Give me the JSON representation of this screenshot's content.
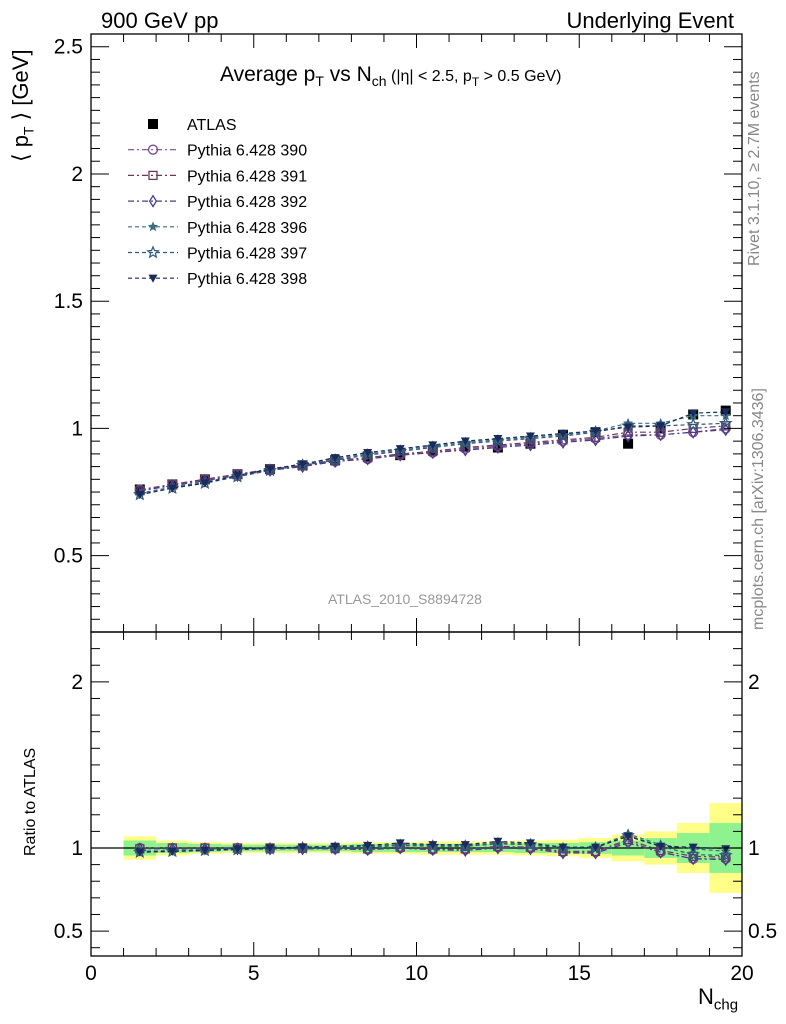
{
  "header": {
    "left": "900 GeV pp",
    "right": "Underlying Event"
  },
  "side_labels": {
    "rivet": "Rivet 3.1.10, ≥ 2.7M events",
    "mcplots": "mcplots.cern.ch [arXiv:1306.3436]"
  },
  "watermark": "ATLAS_2010_S8894728",
  "title": {
    "main": "Average p",
    "main_sub": "T",
    "vs": " vs N",
    "vs_sub": "ch",
    "cut1": " (|η| < 2.5, p",
    "cut_sub": "T",
    "cut2": " > 0.5 GeV)"
  },
  "axes": {
    "y_main_label": "⟨ p",
    "y_main_sub": "T",
    "y_main_unit": " ⟩ [GeV]",
    "y_ratio_label": "Ratio to ATLAS",
    "x_label": "N",
    "x_sub": "chg",
    "x_ticks": [
      "0",
      "5",
      "10",
      "15",
      "20"
    ],
    "y_main_ticks": [
      "0.5",
      "1",
      "1.5",
      "2",
      "2.5"
    ],
    "y_ratio_ticks": [
      "0.5",
      "1",
      "2"
    ]
  },
  "chart_data": {
    "type": "scatter",
    "x_range": [
      0,
      20
    ],
    "main": {
      "ylim": [
        0.2,
        2.55
      ],
      "series": [
        {
          "name": "ATLAS",
          "marker": "filled-square",
          "color": "#000000",
          "x": [
            1.5,
            2.5,
            3.5,
            4.5,
            5.5,
            6.5,
            7.5,
            8.5,
            9.5,
            10.5,
            11.5,
            12.5,
            13.5,
            14.5,
            15.5,
            16.5,
            17.5,
            18.5,
            19.5
          ],
          "y": [
            0.76,
            0.78,
            0.8,
            0.82,
            0.84,
            0.855,
            0.875,
            0.89,
            0.895,
            0.915,
            0.93,
            0.925,
            0.94,
            0.975,
            0.985,
            0.94,
            1.0,
            1.055,
            1.07
          ]
        },
        {
          "name": "Pythia 6.428 390",
          "marker": "open-circle",
          "color": "#7b4a8c",
          "x": [
            1.5,
            2.5,
            3.5,
            4.5,
            5.5,
            6.5,
            7.5,
            8.5,
            9.5,
            10.5,
            11.5,
            12.5,
            13.5,
            14.5,
            15.5,
            16.5,
            17.5,
            18.5,
            19.5
          ],
          "y": [
            0.76,
            0.78,
            0.8,
            0.82,
            0.835,
            0.855,
            0.87,
            0.88,
            0.895,
            0.905,
            0.92,
            0.93,
            0.94,
            0.95,
            0.96,
            0.975,
            0.975,
            0.985,
            1.0
          ]
        },
        {
          "name": "Pythia 6.428 391",
          "marker": "open-square",
          "color": "#6b3a5a",
          "x": [
            1.5,
            2.5,
            3.5,
            4.5,
            5.5,
            6.5,
            7.5,
            8.5,
            9.5,
            10.5,
            11.5,
            12.5,
            13.5,
            14.5,
            15.5,
            16.5,
            17.5,
            18.5,
            19.5
          ],
          "y": [
            0.755,
            0.78,
            0.8,
            0.82,
            0.84,
            0.855,
            0.875,
            0.885,
            0.9,
            0.91,
            0.925,
            0.935,
            0.945,
            0.955,
            0.965,
            0.985,
            0.985,
            1.0,
            1.01
          ]
        },
        {
          "name": "Pythia 6.428 392",
          "marker": "open-diamond",
          "color": "#4a3a8c",
          "x": [
            1.5,
            2.5,
            3.5,
            4.5,
            5.5,
            6.5,
            7.5,
            8.5,
            9.5,
            10.5,
            11.5,
            12.5,
            13.5,
            14.5,
            15.5,
            16.5,
            17.5,
            18.5,
            19.5
          ],
          "y": [
            0.755,
            0.775,
            0.795,
            0.815,
            0.835,
            0.85,
            0.87,
            0.88,
            0.895,
            0.905,
            0.915,
            0.925,
            0.935,
            0.945,
            0.955,
            0.97,
            0.975,
            0.985,
            0.995
          ]
        },
        {
          "name": "Pythia 6.428 396",
          "marker": "filled-star",
          "color": "#3e6e84",
          "x": [
            1.5,
            2.5,
            3.5,
            4.5,
            5.5,
            6.5,
            7.5,
            8.5,
            9.5,
            10.5,
            11.5,
            12.5,
            13.5,
            14.5,
            15.5,
            16.5,
            17.5,
            18.5,
            19.5
          ],
          "y": [
            0.745,
            0.77,
            0.79,
            0.815,
            0.84,
            0.86,
            0.88,
            0.9,
            0.915,
            0.93,
            0.945,
            0.955,
            0.965,
            0.975,
            0.99,
            1.02,
            1.02,
            1.05,
            1.05
          ]
        },
        {
          "name": "Pythia 6.428 397",
          "marker": "open-star",
          "color": "#2e5a7a",
          "x": [
            1.5,
            2.5,
            3.5,
            4.5,
            5.5,
            6.5,
            7.5,
            8.5,
            9.5,
            10.5,
            11.5,
            12.5,
            13.5,
            14.5,
            15.5,
            16.5,
            17.5,
            18.5,
            19.5
          ],
          "y": [
            0.74,
            0.765,
            0.785,
            0.81,
            0.835,
            0.855,
            0.875,
            0.895,
            0.91,
            0.925,
            0.94,
            0.95,
            0.96,
            0.97,
            0.985,
            1.01,
            1.01,
            1.015,
            1.02
          ]
        },
        {
          "name": "Pythia 6.428 398",
          "marker": "filled-triangle-down",
          "color": "#1a2a5a",
          "x": [
            1.5,
            2.5,
            3.5,
            4.5,
            5.5,
            6.5,
            7.5,
            8.5,
            9.5,
            10.5,
            11.5,
            12.5,
            13.5,
            14.5,
            15.5,
            16.5,
            17.5,
            18.5,
            19.5
          ],
          "y": [
            0.74,
            0.765,
            0.785,
            0.815,
            0.84,
            0.86,
            0.885,
            0.905,
            0.92,
            0.935,
            0.95,
            0.96,
            0.97,
            0.98,
            0.99,
            1.005,
            1.01,
            1.06,
            1.065
          ]
        }
      ]
    },
    "ratio": {
      "ylim": [
        0.35,
        2.3
      ],
      "bands": {
        "x_edges": [
          1,
          2,
          3,
          4,
          5,
          6,
          7,
          8,
          9,
          10,
          11,
          12,
          13,
          14,
          15,
          16,
          17,
          18,
          19,
          20
        ],
        "inner_halfwidth": [
          0.045,
          0.03,
          0.025,
          0.02,
          0.02,
          0.02,
          0.02,
          0.025,
          0.025,
          0.025,
          0.025,
          0.025,
          0.03,
          0.03,
          0.035,
          0.045,
          0.06,
          0.09,
          0.15
        ],
        "outer_halfwidth": [
          0.07,
          0.045,
          0.035,
          0.03,
          0.03,
          0.03,
          0.03,
          0.035,
          0.035,
          0.04,
          0.04,
          0.04,
          0.045,
          0.05,
          0.06,
          0.08,
          0.1,
          0.15,
          0.27
        ],
        "inner_color": "#8ef28e",
        "outer_color": "#ffff88"
      },
      "series": [
        {
          "name": "Pythia 6.428 390",
          "y": [
            1.0,
            1.0,
            1.0,
            1.0,
            0.995,
            1.0,
            0.995,
            0.99,
            1.0,
            0.99,
            0.99,
            1.005,
            1.0,
            0.975,
            0.975,
            1.04,
            0.975,
            0.935,
            0.935
          ]
        },
        {
          "name": "Pythia 6.428 391",
          "y": [
            0.995,
            1.0,
            1.0,
            1.0,
            1.0,
            1.0,
            1.0,
            0.995,
            1.005,
            0.995,
            0.995,
            1.01,
            1.005,
            0.98,
            0.98,
            1.05,
            0.985,
            0.95,
            0.945
          ]
        },
        {
          "name": "Pythia 6.428 392",
          "y": [
            0.995,
            0.995,
            0.995,
            0.995,
            0.995,
            0.995,
            0.995,
            0.99,
            1.0,
            0.99,
            0.985,
            1.0,
            0.995,
            0.97,
            0.97,
            1.03,
            0.975,
            0.935,
            0.93
          ]
        },
        {
          "name": "Pythia 6.428 396",
          "y": [
            0.98,
            0.985,
            0.99,
            0.995,
            1.0,
            1.005,
            1.005,
            1.01,
            1.02,
            1.015,
            1.015,
            1.03,
            1.025,
            1.0,
            1.005,
            1.085,
            1.02,
            0.995,
            0.98
          ]
        },
        {
          "name": "Pythia 6.428 397",
          "y": [
            0.975,
            0.98,
            0.985,
            0.99,
            0.995,
            1.0,
            1.0,
            1.005,
            1.015,
            1.01,
            1.01,
            1.025,
            1.02,
            0.995,
            1.0,
            1.075,
            1.01,
            0.96,
            0.955
          ]
        },
        {
          "name": "Pythia 6.428 398",
          "y": [
            0.975,
            0.98,
            0.985,
            0.995,
            1.0,
            1.005,
            1.01,
            1.015,
            1.03,
            1.02,
            1.02,
            1.04,
            1.03,
            1.005,
            1.005,
            1.07,
            1.01,
            1.005,
            0.995
          ]
        }
      ]
    }
  }
}
